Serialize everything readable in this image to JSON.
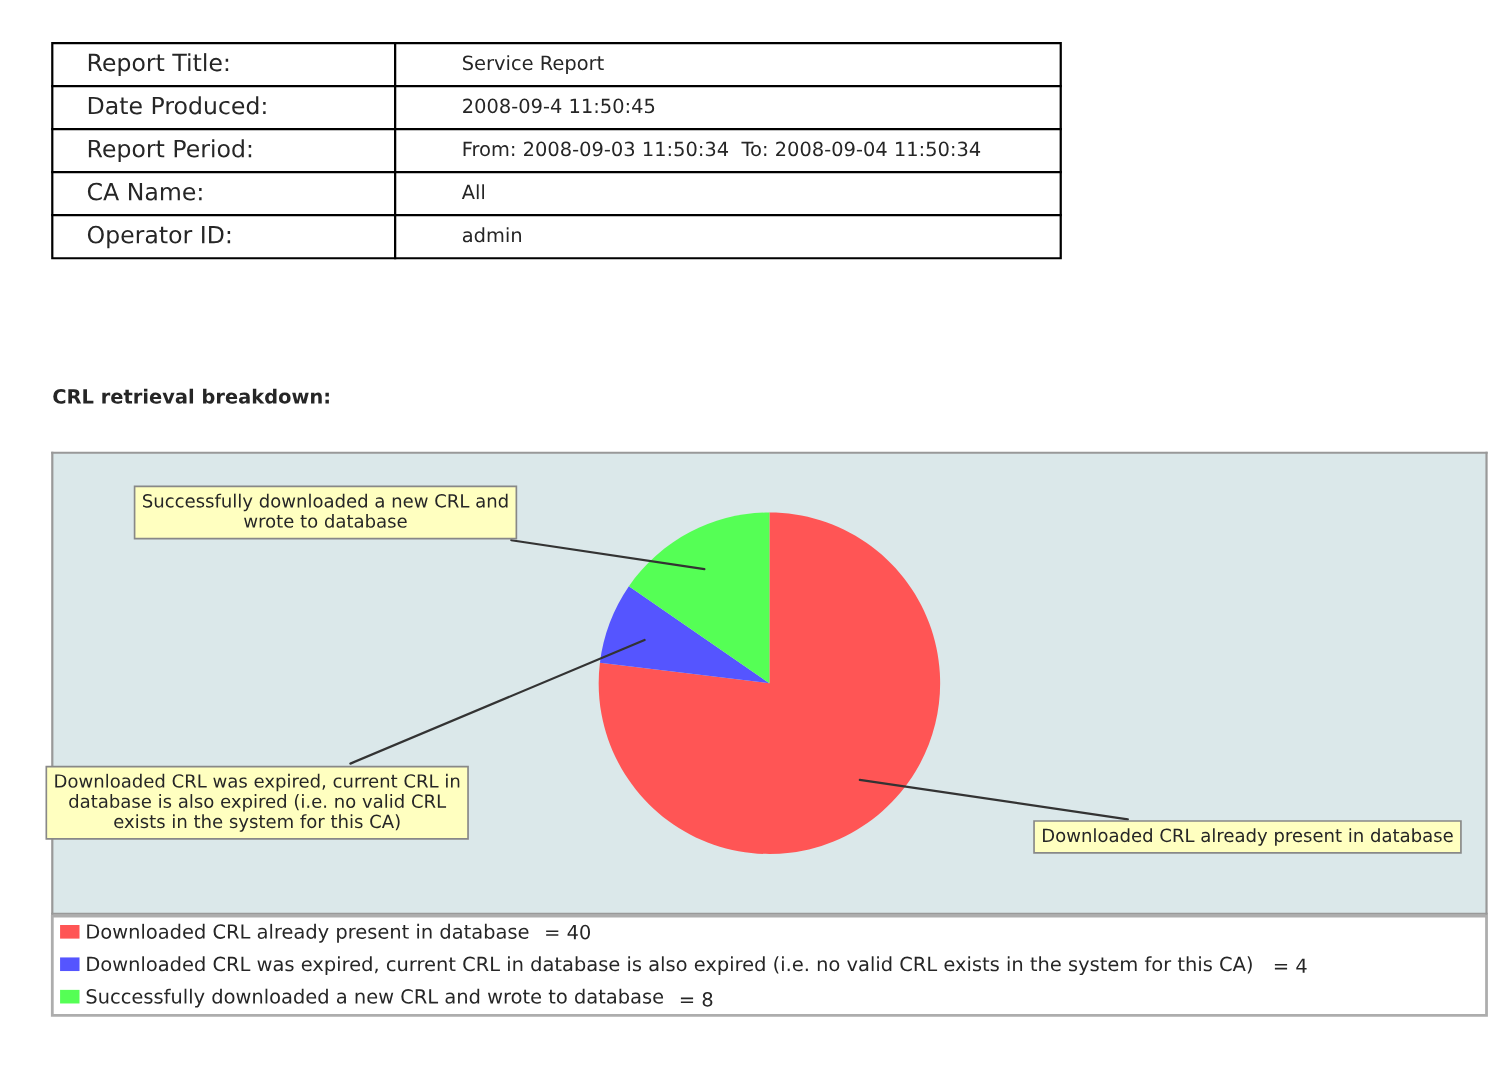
{
  "chart_data": {
    "type": "pie",
    "title": "CRL retrieval breakdown:",
    "categories": [
      "Downloaded CRL already present in database",
      "Downloaded CRL was expired, current CRL in database is also expired (i.e. no valid CRL exists in the system for this CA)",
      "Successfully downloaded a new CRL and wrote to database"
    ],
    "values": [
      40,
      4,
      8
    ],
    "colors": [
      "#ff5555",
      "#5555ff",
      "#55ff55"
    ],
    "value_labels": [
      "= 40",
      "= 4",
      "= 8"
    ],
    "legend": "bottom",
    "annotations": [
      "Report Title:",
      "Service Report",
      "Date Produced:",
      "2008-09-4 11:50:45",
      "Report Period:",
      "From: 2008-09-03 11:50:34  To: 2008-09-04 11:50:34",
      "CA Name:",
      "All",
      "Operator ID:",
      "admin"
    ]
  }
}
